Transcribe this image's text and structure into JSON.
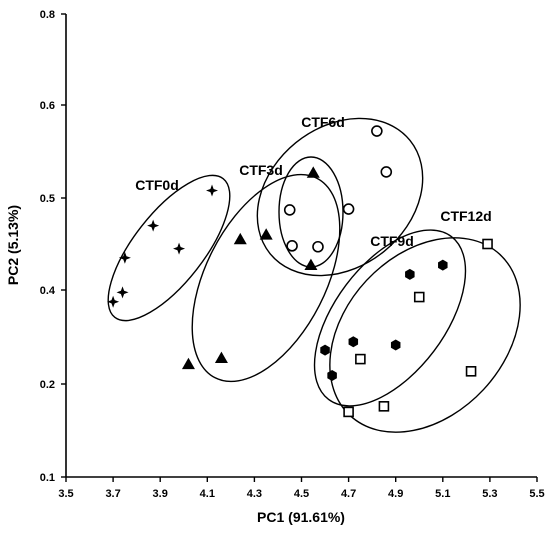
{
  "chart_data": {
    "type": "scatter",
    "xlabel": "PC1 (91.61%)",
    "ylabel": "PC2 (5.13%)",
    "xlim": [
      3.5,
      5.5
    ],
    "ylim": [
      0.1,
      0.8
    ],
    "x_ticks": [
      "3.5",
      "3.7",
      "3.9",
      "4.1",
      "4.3",
      "4.5",
      "4.7",
      "4.9",
      "5.1",
      "5.3",
      "5.5"
    ],
    "y_ticks": [
      "0.1",
      "0.2",
      "0.4",
      "0.5",
      "0.6",
      "0.8"
    ],
    "grid": false,
    "legend": "none",
    "series": [
      {
        "name": "CTF0d",
        "marker": "four-point-star",
        "points": [
          [
            3.7,
            0.375
          ],
          [
            3.74,
            0.395
          ],
          [
            3.75,
            0.435
          ],
          [
            3.87,
            0.47
          ],
          [
            3.98,
            0.445
          ],
          [
            4.12,
            0.508
          ]
        ]
      },
      {
        "name": "CTF3d",
        "marker": "filled-triangle",
        "points": [
          [
            4.02,
            0.242
          ],
          [
            4.16,
            0.255
          ],
          [
            4.24,
            0.455
          ],
          [
            4.35,
            0.46
          ],
          [
            4.54,
            0.427
          ],
          [
            4.55,
            0.527
          ]
        ]
      },
      {
        "name": "CTF6d",
        "marker": "open-circle",
        "points": [
          [
            4.45,
            0.487
          ],
          [
            4.46,
            0.448
          ],
          [
            4.57,
            0.447
          ],
          [
            4.7,
            0.488
          ],
          [
            4.82,
            0.572
          ],
          [
            4.86,
            0.528
          ]
        ]
      },
      {
        "name": "CTF9d",
        "marker": "filled-hexagon",
        "points": [
          [
            4.6,
            0.272
          ],
          [
            4.63,
            0.218
          ],
          [
            4.72,
            0.29
          ],
          [
            4.9,
            0.283
          ],
          [
            4.96,
            0.417
          ],
          [
            5.1,
            0.427
          ]
        ]
      },
      {
        "name": "CTF12d",
        "marker": "open-square",
        "points": [
          [
            4.7,
            0.17
          ],
          [
            4.75,
            0.253
          ],
          [
            4.85,
            0.176
          ],
          [
            5.0,
            0.385
          ],
          [
            5.22,
            0.227
          ],
          [
            5.29,
            0.45
          ]
        ]
      }
    ]
  }
}
